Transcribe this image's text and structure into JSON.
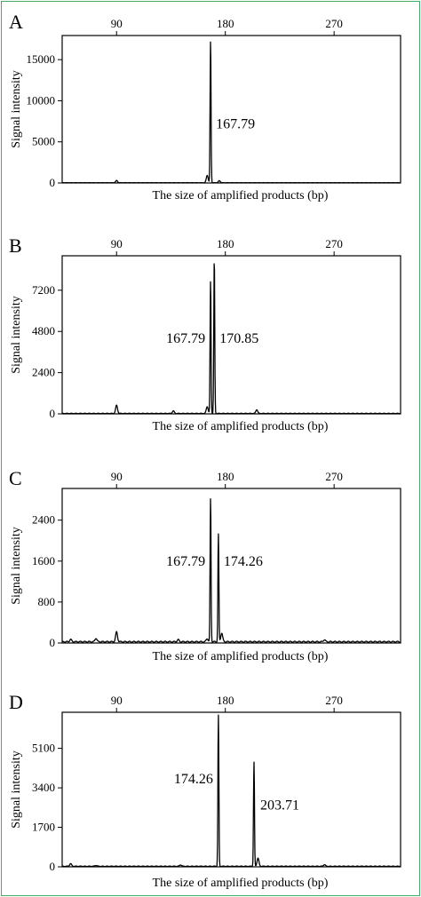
{
  "chart_data": [
    {
      "type": "line",
      "panel": "A",
      "xlabel": "The size of amplified products (bp)",
      "ylabel": "Signal intensity",
      "x_ticks": [
        90,
        180,
        270
      ],
      "y_ticks": [
        0,
        5000,
        10000,
        15000
      ],
      "xlim": [
        45,
        325
      ],
      "ylim": [
        0,
        17500
      ],
      "baseline": [
        [
          90,
          280
        ],
        [
          165,
          900
        ],
        [
          175,
          250
        ]
      ],
      "peaks": [
        {
          "x": 167.79,
          "height": 17200,
          "label": "167.79"
        }
      ]
    },
    {
      "type": "line",
      "panel": "B",
      "xlabel": "The size of amplified products (bp)",
      "ylabel": "Signal intensity",
      "x_ticks": [
        90,
        180,
        270
      ],
      "y_ticks": [
        0,
        2400,
        4800,
        7200
      ],
      "xlim": [
        45,
        325
      ],
      "ylim": [
        0,
        9000
      ],
      "baseline": [
        [
          90,
          480
        ],
        [
          137,
          150
        ],
        [
          165,
          400
        ],
        [
          206,
          220
        ]
      ],
      "peaks": [
        {
          "x": 167.79,
          "height": 7700,
          "label": "167.79"
        },
        {
          "x": 170.85,
          "height": 9000,
          "label": "170.85"
        }
      ]
    },
    {
      "type": "line",
      "panel": "C",
      "xlabel": "The size of amplified products (bp)",
      "ylabel": "Signal intensity",
      "x_ticks": [
        90,
        180,
        270
      ],
      "y_ticks": [
        0,
        800,
        1600,
        2400
      ],
      "xlim": [
        45,
        325
      ],
      "ylim": [
        0,
        2950
      ],
      "baseline": [
        [
          52,
          45
        ],
        [
          73,
          70
        ],
        [
          90,
          190
        ],
        [
          141,
          40
        ],
        [
          165,
          60
        ],
        [
          177,
          170
        ],
        [
          262,
          40
        ]
      ],
      "peaks": [
        {
          "x": 167.79,
          "height": 2800,
          "label": "167.79"
        },
        {
          "x": 174.26,
          "height": 2100,
          "label": "174.26"
        }
      ]
    },
    {
      "type": "line",
      "panel": "D",
      "xlabel": "The size of amplified products (bp)",
      "ylabel": "Signal intensity",
      "x_ticks": [
        90,
        180,
        270
      ],
      "y_ticks": [
        0,
        1700,
        3400,
        5100
      ],
      "xlim": [
        45,
        325
      ],
      "ylim": [
        0,
        6500
      ],
      "baseline": [
        [
          52,
          110
        ],
        [
          73,
          40
        ],
        [
          143,
          60
        ],
        [
          207,
          350
        ],
        [
          262,
          70
        ]
      ],
      "peaks": [
        {
          "x": 174.26,
          "height": 6500,
          "label": "174.26"
        },
        {
          "x": 203.71,
          "height": 4500,
          "label": "203.71"
        }
      ]
    }
  ]
}
